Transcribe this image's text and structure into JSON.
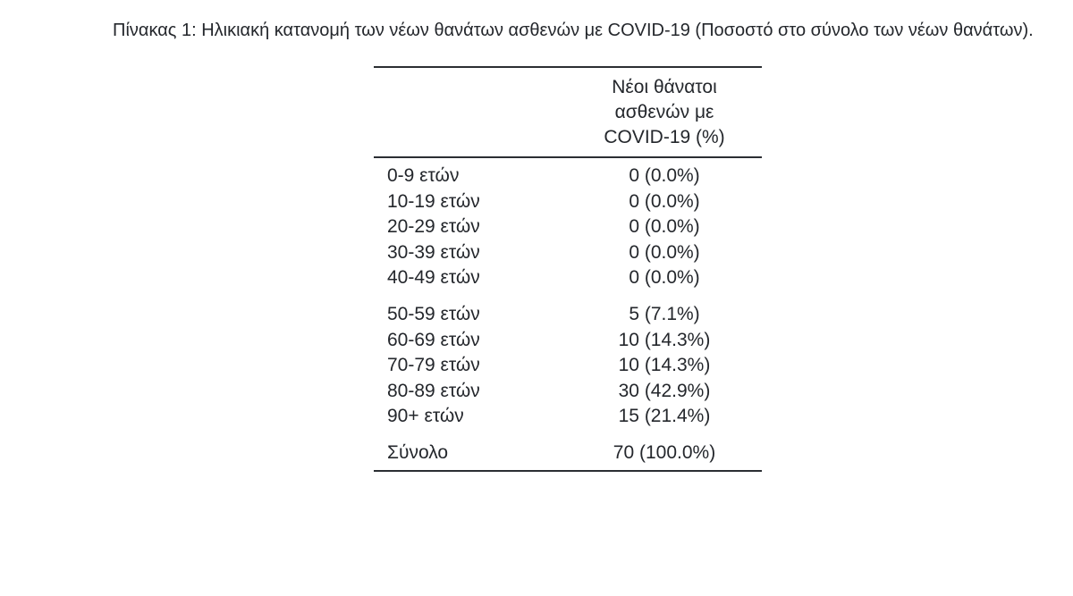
{
  "title": "Πίνακας 1: Ηλικιακή κατανομή των νέων θανάτων ασθενών με COVID-19 (Ποσοστό στο σύνολο των νέων θανάτων).",
  "table": {
    "header": {
      "lines": [
        "Νέοι θάνατοι",
        "ασθενών με",
        "COVID-19 (%)"
      ]
    },
    "groups": [
      {
        "rows": [
          {
            "label": "0-9 ετών",
            "value": "0 (0.0%)"
          },
          {
            "label": "10-19 ετών",
            "value": "0 (0.0%)"
          },
          {
            "label": "20-29 ετών",
            "value": "0 (0.0%)"
          },
          {
            "label": "30-39 ετών",
            "value": "0 (0.0%)"
          },
          {
            "label": "40-49 ετών",
            "value": "0 (0.0%)"
          }
        ]
      },
      {
        "rows": [
          {
            "label": "50-59 ετών",
            "value": "5 (7.1%)"
          },
          {
            "label": "60-69 ετών",
            "value": "10 (14.3%)"
          },
          {
            "label": "70-79 ετών",
            "value": "10 (14.3%)"
          },
          {
            "label": "80-89 ετών",
            "value": "30 (42.9%)"
          },
          {
            "label": "90+ ετών",
            "value": "15 (21.4%)"
          }
        ]
      },
      {
        "rows": [
          {
            "label": "Σύνολο",
            "value": "70 (100.0%)"
          }
        ]
      }
    ]
  },
  "colors": {
    "text": "#24272c",
    "rule": "#2b2e33",
    "background": "#ffffff"
  },
  "chart_data": {
    "type": "table",
    "title": "Πίνακας 1: Ηλικιακή κατανομή των νέων θανάτων ασθενών με COVID-19 (Ποσοστό στο σύνολο των νέων θανάτων).",
    "value_column_header": "Νέοι θάνατοι ασθενών με COVID-19 (%)",
    "categories": [
      "0-9 ετών",
      "10-19 ετών",
      "20-29 ετών",
      "30-39 ετών",
      "40-49 ετών",
      "50-59 ετών",
      "60-69 ετών",
      "70-79 ετών",
      "80-89 ετών",
      "90+ ετών",
      "Σύνολο"
    ],
    "deaths": [
      0,
      0,
      0,
      0,
      0,
      5,
      10,
      10,
      30,
      15,
      70
    ],
    "percent_of_total": [
      0.0,
      0.0,
      0.0,
      0.0,
      0.0,
      7.1,
      14.3,
      14.3,
      42.9,
      21.4,
      100.0
    ]
  }
}
